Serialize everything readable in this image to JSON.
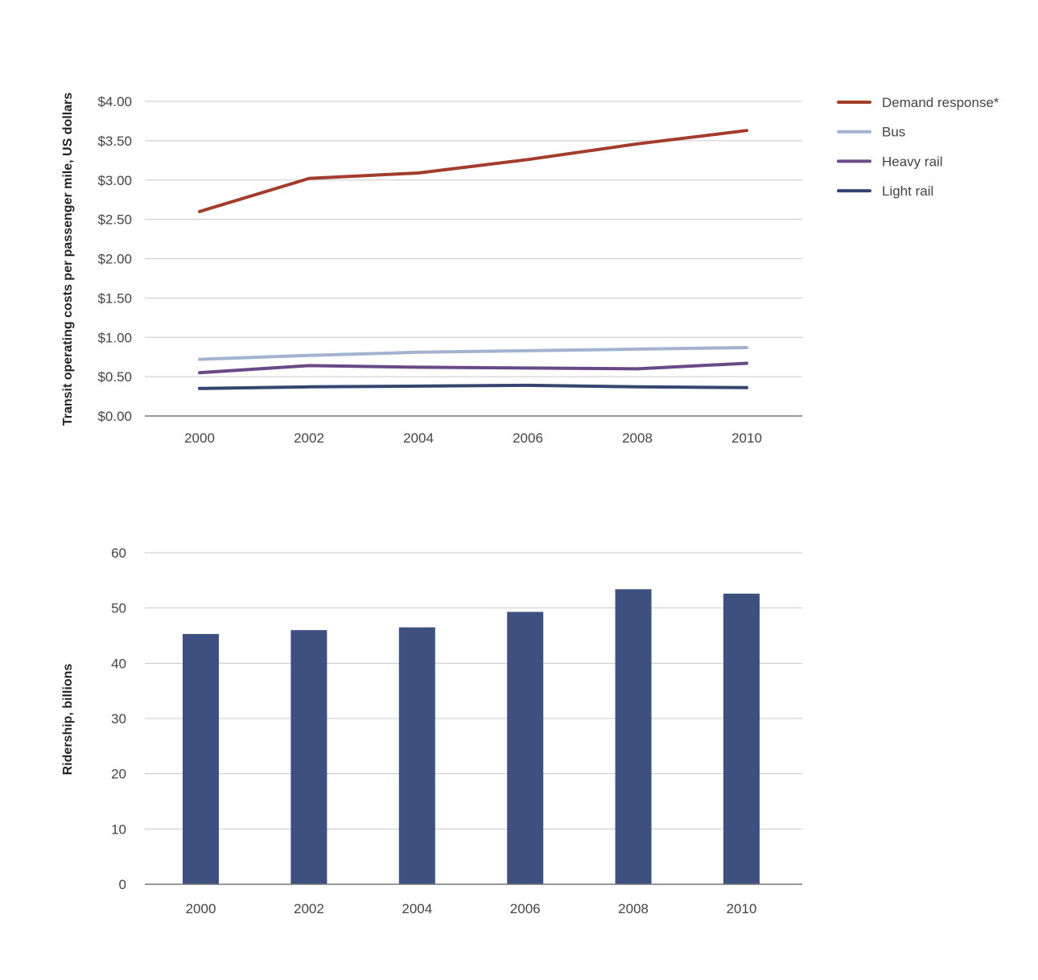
{
  "chart_data": [
    {
      "type": "line",
      "ylabel": "Transit operating costs per passenger mile, US dollars",
      "ylim": [
        0,
        4
      ],
      "y_ticks": [
        "$0.00",
        "$0.50",
        "$1.00",
        "$1.50",
        "$2.00",
        "$2.50",
        "$3.00",
        "$3.50",
        "$4.00"
      ],
      "x_ticks": [
        "2000",
        "2002",
        "2004",
        "2006",
        "2008",
        "2010"
      ],
      "legend_position": "right",
      "grid": true,
      "series": [
        {
          "name": "Demand response*",
          "color": "#a23c2c",
          "x": [
            2000,
            2002,
            2004,
            2006,
            2008,
            2010
          ],
          "values": [
            2.6,
            3.02,
            3.09,
            3.26,
            3.46,
            3.63
          ]
        },
        {
          "name": "Bus",
          "color": "#a3b3cf",
          "x": [
            2000,
            2002,
            2004,
            2006,
            2008,
            2010
          ],
          "values": [
            0.72,
            0.77,
            0.81,
            0.83,
            0.85,
            0.87
          ]
        },
        {
          "name": "Heavy rail",
          "color": "#6a4a86",
          "x": [
            2000,
            2002,
            2004,
            2006,
            2008,
            2010
          ],
          "values": [
            0.55,
            0.64,
            0.62,
            0.61,
            0.6,
            0.67
          ]
        },
        {
          "name": "Light rail",
          "color": "#34466f",
          "x": [
            2000,
            2002,
            2004,
            2006,
            2008,
            2010
          ],
          "values": [
            0.35,
            0.37,
            0.38,
            0.39,
            0.37,
            0.36
          ]
        }
      ]
    },
    {
      "type": "bar",
      "ylabel": "Ridership, billions",
      "ylim": [
        0,
        60
      ],
      "y_ticks": [
        "0",
        "10",
        "20",
        "30",
        "40",
        "50",
        "60"
      ],
      "categories": [
        "2000",
        "2002",
        "2004",
        "2006",
        "2008",
        "2010"
      ],
      "values": [
        45.3,
        46.0,
        46.5,
        49.3,
        53.4,
        52.6
      ],
      "color": "#3d5080",
      "grid": true
    }
  ]
}
